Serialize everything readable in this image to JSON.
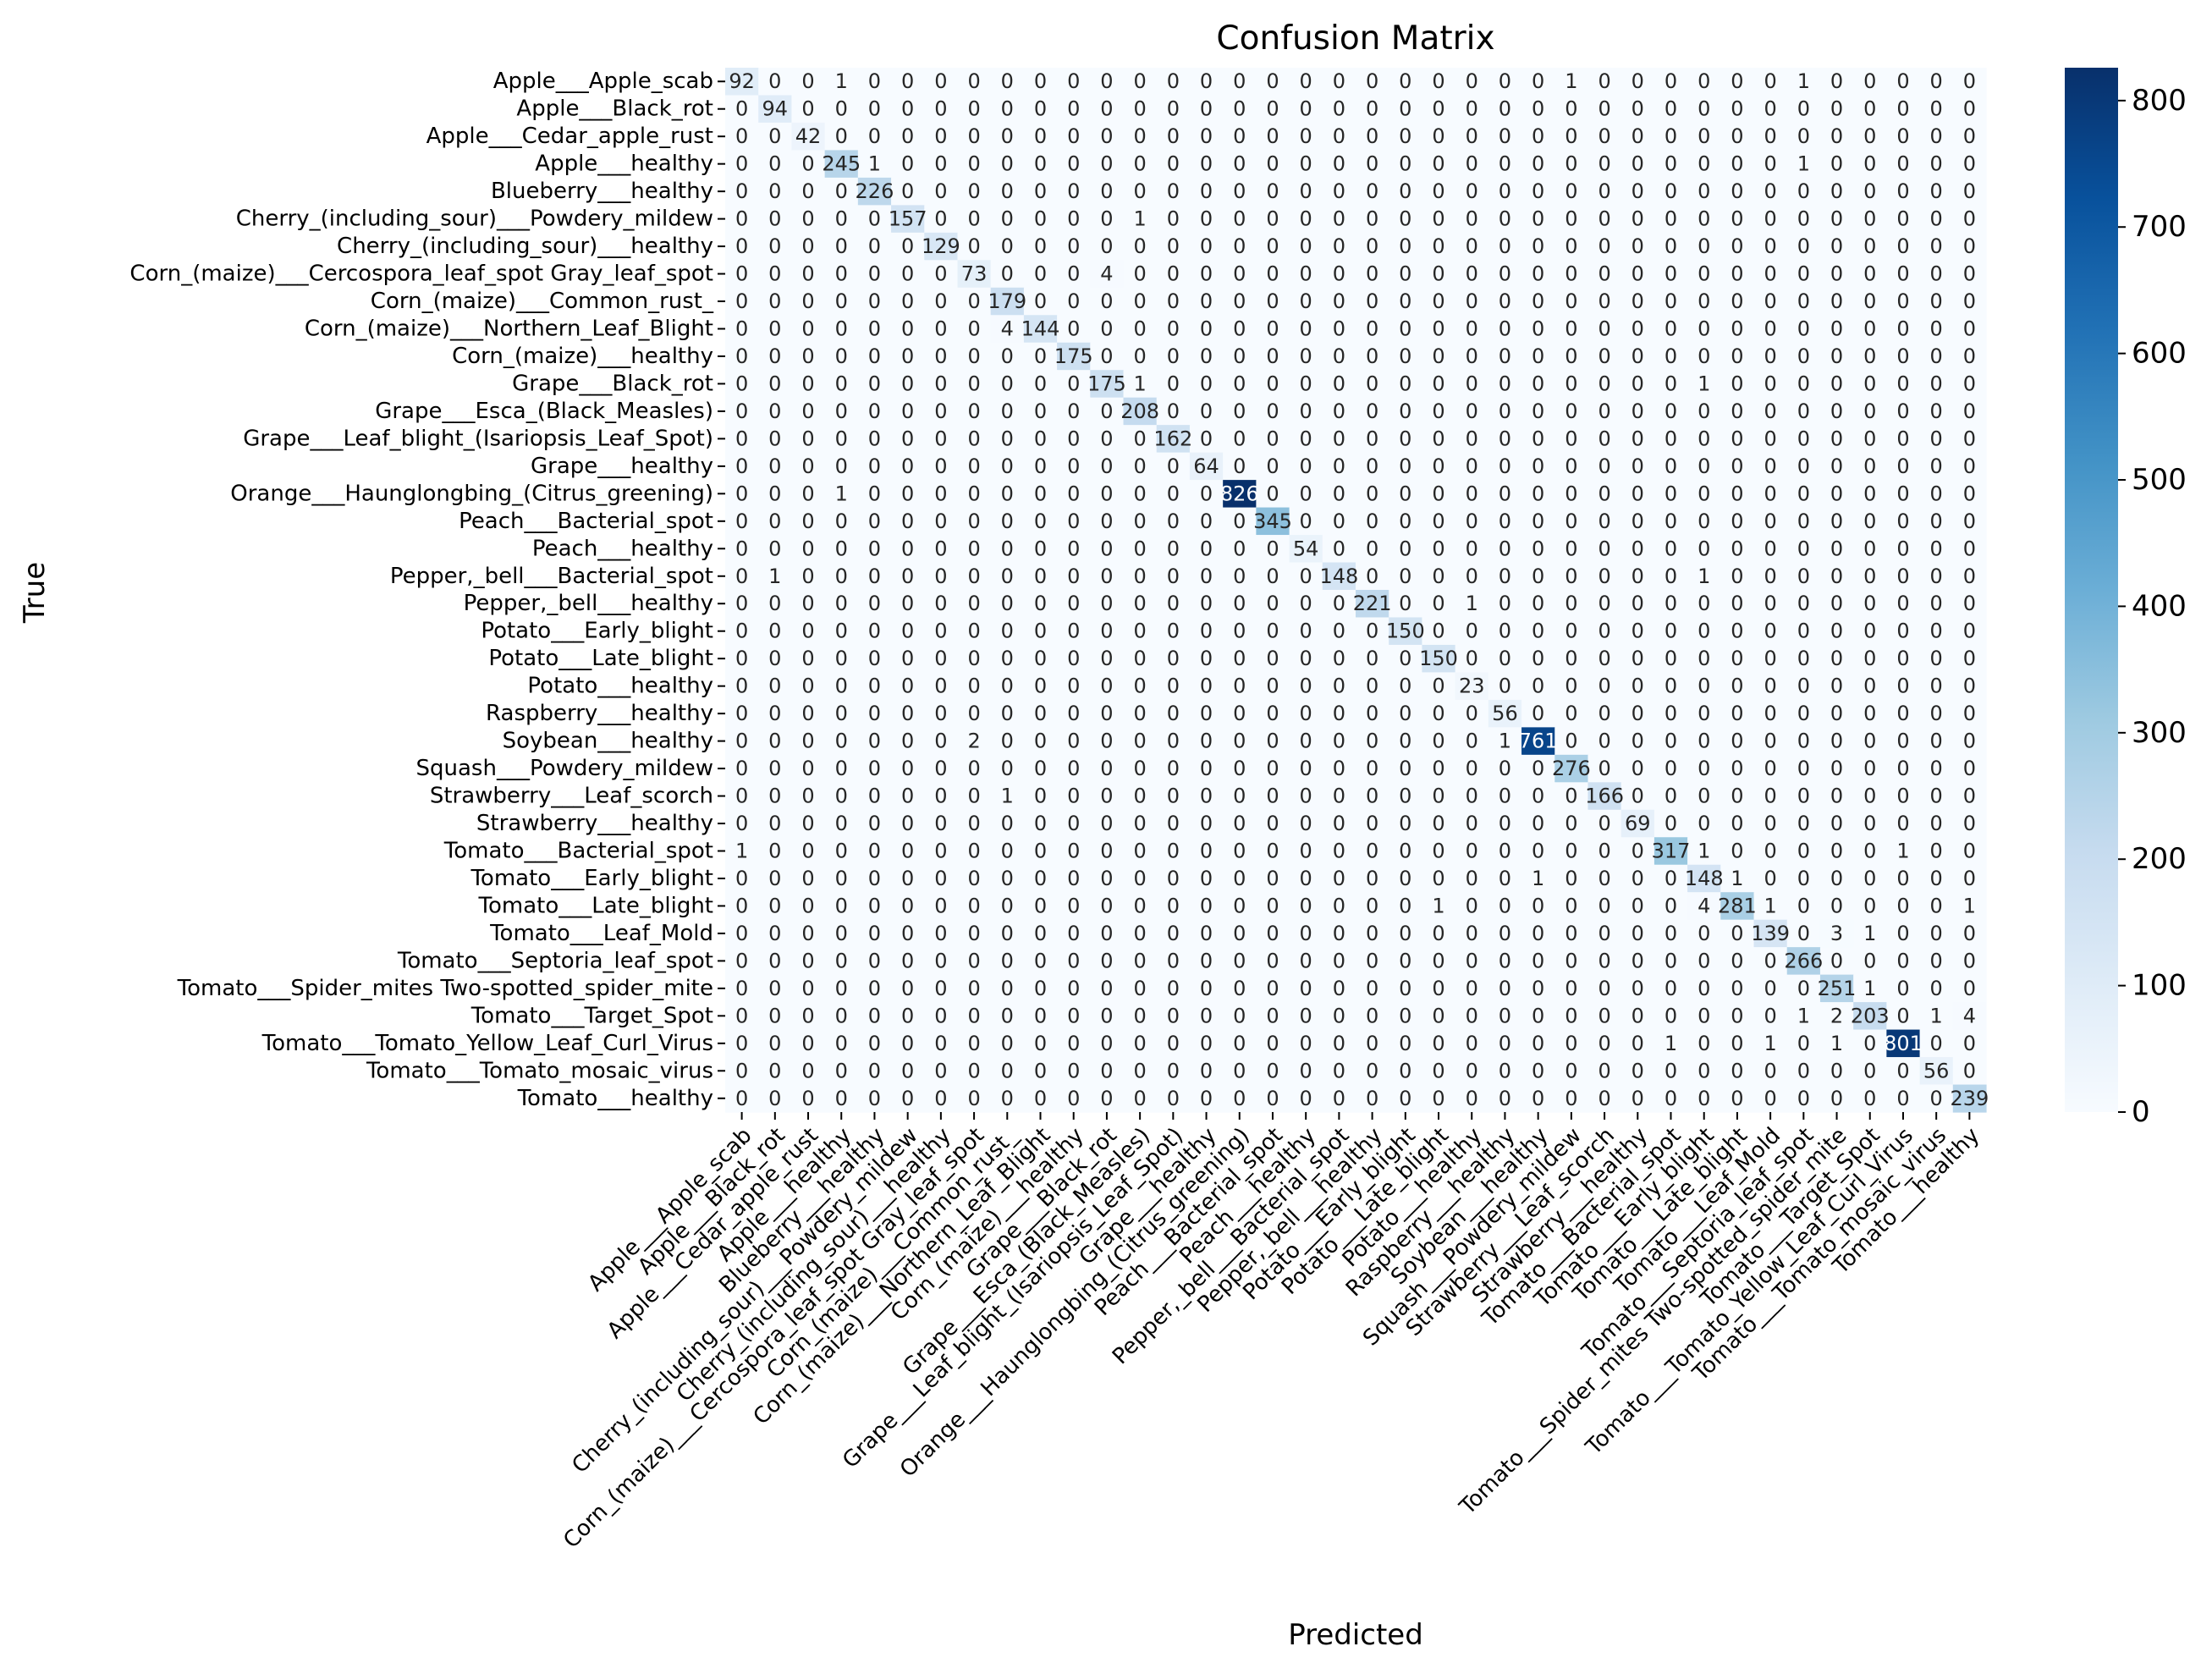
{
  "chart_data": {
    "type": "heatmap",
    "title": "Confusion Matrix",
    "xlabel": "Predicted",
    "ylabel": "True",
    "labels": [
      "Apple___Apple_scab",
      "Apple___Black_rot",
      "Apple___Cedar_apple_rust",
      "Apple___healthy",
      "Blueberry___healthy",
      "Cherry_(including_sour)___Powdery_mildew",
      "Cherry_(including_sour)___healthy",
      "Corn_(maize)___Cercospora_leaf_spot Gray_leaf_spot",
      "Corn_(maize)___Common_rust_",
      "Corn_(maize)___Northern_Leaf_Blight",
      "Corn_(maize)___healthy",
      "Grape___Black_rot",
      "Grape___Esca_(Black_Measles)",
      "Grape___Leaf_blight_(Isariopsis_Leaf_Spot)",
      "Grape___healthy",
      "Orange___Haunglongbing_(Citrus_greening)",
      "Peach___Bacterial_spot",
      "Peach___healthy",
      "Pepper,_bell___Bacterial_spot",
      "Pepper,_bell___healthy",
      "Potato___Early_blight",
      "Potato___Late_blight",
      "Potato___healthy",
      "Raspberry___healthy",
      "Soybean___healthy",
      "Squash___Powdery_mildew",
      "Strawberry___Leaf_scorch",
      "Strawberry___healthy",
      "Tomato___Bacterial_spot",
      "Tomato___Early_blight",
      "Tomato___Late_blight",
      "Tomato___Leaf_Mold",
      "Tomato___Septoria_leaf_spot",
      "Tomato___Spider_mites Two-spotted_spider_mite",
      "Tomato___Target_Spot",
      "Tomato___Tomato_Yellow_Leaf_Curl_Virus",
      "Tomato___Tomato_mosaic_virus",
      "Tomato___healthy"
    ],
    "diagonal": [
      92,
      94,
      42,
      245,
      226,
      157,
      129,
      73,
      179,
      144,
      175,
      175,
      208,
      162,
      64,
      826,
      345,
      54,
      148,
      221,
      150,
      150,
      23,
      56,
      761,
      276,
      166,
      69,
      317,
      148,
      281,
      139,
      266,
      251,
      203,
      801,
      56,
      239
    ],
    "off_diagonal": [
      [
        0,
        3,
        1
      ],
      [
        0,
        25,
        1
      ],
      [
        0,
        32,
        1
      ],
      [
        3,
        4,
        1
      ],
      [
        3,
        32,
        1
      ],
      [
        5,
        12,
        1
      ],
      [
        7,
        11,
        4
      ],
      [
        9,
        8,
        4
      ],
      [
        11,
        12,
        1
      ],
      [
        11,
        29,
        1
      ],
      [
        15,
        3,
        1
      ],
      [
        18,
        1,
        1
      ],
      [
        18,
        29,
        1
      ],
      [
        19,
        22,
        1
      ],
      [
        24,
        7,
        2
      ],
      [
        24,
        23,
        1
      ],
      [
        26,
        8,
        1
      ],
      [
        28,
        0,
        1
      ],
      [
        28,
        29,
        1
      ],
      [
        28,
        35,
        1
      ],
      [
        29,
        24,
        1
      ],
      [
        29,
        30,
        1
      ],
      [
        30,
        21,
        1
      ],
      [
        30,
        29,
        4
      ],
      [
        30,
        31,
        1
      ],
      [
        30,
        37,
        1
      ],
      [
        31,
        33,
        3
      ],
      [
        31,
        34,
        1
      ],
      [
        33,
        34,
        1
      ],
      [
        34,
        32,
        1
      ],
      [
        34,
        33,
        2
      ],
      [
        34,
        36,
        1
      ],
      [
        34,
        37,
        4
      ],
      [
        35,
        28,
        1
      ],
      [
        35,
        31,
        1
      ],
      [
        35,
        33,
        1
      ]
    ],
    "colorbar": {
      "min": 0,
      "max": 826,
      "ticks": [
        0,
        100,
        200,
        300,
        400,
        500,
        600,
        700,
        800
      ],
      "colormap": "Blues",
      "colors": [
        "#f7fbff",
        "#deebf7",
        "#c6dbef",
        "#9ecae1",
        "#6baed6",
        "#4292c6",
        "#2171b5",
        "#08519c",
        "#08306b"
      ]
    }
  }
}
